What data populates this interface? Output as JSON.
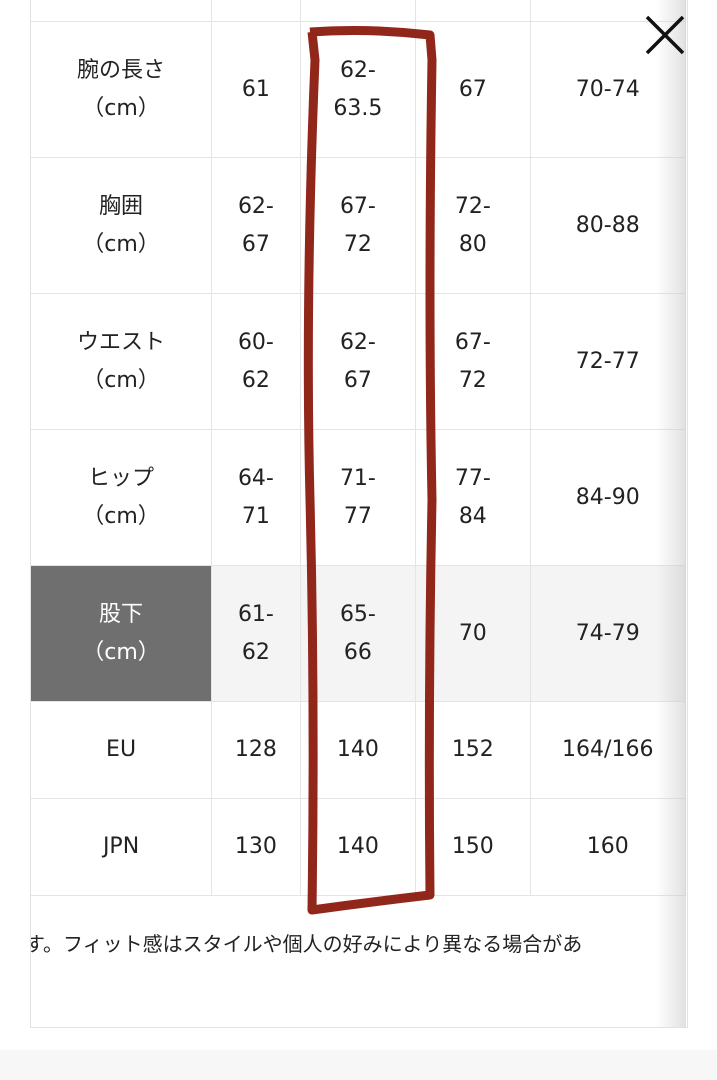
{
  "size_table": {
    "rows": [
      {
        "label": [
          "腕の長さ",
          "（cm）"
        ],
        "values": [
          [
            "61"
          ],
          [
            "62-",
            "63.5"
          ],
          [
            "67"
          ],
          [
            "70-74"
          ]
        ]
      },
      {
        "label": [
          "胸囲",
          "（cm）"
        ],
        "values": [
          [
            "62-",
            "67"
          ],
          [
            "67-",
            "72"
          ],
          [
            "72-",
            "80"
          ],
          [
            "80-88"
          ]
        ]
      },
      {
        "label": [
          "ウエスト",
          "（cm）"
        ],
        "values": [
          [
            "60-",
            "62"
          ],
          [
            "62-",
            "67"
          ],
          [
            "67-",
            "72"
          ],
          [
            "72-77"
          ]
        ]
      },
      {
        "label": [
          "ヒップ",
          "（cm）"
        ],
        "values": [
          [
            "64-",
            "71"
          ],
          [
            "71-",
            "77"
          ],
          [
            "77-",
            "84"
          ],
          [
            "84-90"
          ]
        ]
      },
      {
        "label": [
          "股下",
          "（cm）"
        ],
        "values": [
          [
            "61-",
            "62"
          ],
          [
            "65-",
            "66"
          ],
          [
            "70"
          ],
          [
            "74-79"
          ]
        ],
        "highlighted": true
      },
      {
        "label": [
          "EU"
        ],
        "values": [
          [
            "128"
          ],
          [
            "140"
          ],
          [
            "152"
          ],
          [
            "164/166"
          ]
        ]
      },
      {
        "label": [
          "JPN"
        ],
        "values": [
          [
            "130"
          ],
          [
            "140"
          ],
          [
            "150"
          ],
          [
            "160"
          ]
        ]
      }
    ]
  },
  "note": "す。フィット感はスタイルや個人の好みにより異なる場合があ",
  "close_icon": "close-icon",
  "colors": {
    "highlight_header": "#6f6f6f",
    "annotation": "#8b1a0e"
  }
}
